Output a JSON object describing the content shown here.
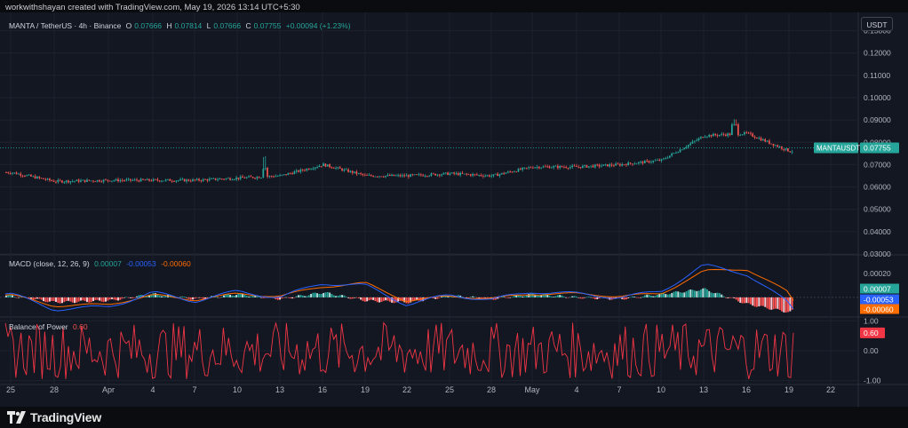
{
  "header": {
    "credit": "workwithshayan created with TradingView.com, May 19, 2026 13:14 UTC+5:30",
    "symbol": "MANTA / TetherUS · 4h · Binance",
    "o_label": "O",
    "o_value": "0.07666",
    "h_label": "H",
    "h_value": "0.07814",
    "l_label": "L",
    "l_value": "0.07666",
    "c_label": "C",
    "c_value": "0.07755",
    "change": "+0.00094 (+1.23%)"
  },
  "currency_button": "USDT",
  "price_pane": {
    "ticks": [
      "0.13000",
      "0.12000",
      "0.11000",
      "0.10000",
      "0.09000",
      "0.08000",
      "0.07000",
      "0.06000",
      "0.05000",
      "0.04000",
      "0.03000"
    ],
    "last_label": "MANTAUSDT",
    "last_value": "0.07755"
  },
  "macd_pane": {
    "name": "MACD (close, 12, 26, 9)",
    "hist": "0.00007",
    "macd": "-0.00053",
    "signal": "-0.00060",
    "ticks": [
      "0.00020"
    ],
    "tag_hist": "0.00007",
    "tag_macd": "-0.00053",
    "tag_signal": "-0.00060"
  },
  "bop_pane": {
    "name": "Balance of Power",
    "value": "0.60",
    "ticks": [
      "1.00",
      "0.00",
      "-1.00"
    ],
    "tag": "0.60"
  },
  "time_axis": [
    "25",
    "28",
    "Apr",
    "4",
    "7",
    "10",
    "13",
    "16",
    "19",
    "22",
    "25",
    "28",
    "May",
    "4",
    "7",
    "10",
    "13",
    "16",
    "19",
    "22"
  ],
  "footer": {
    "logo_text": "TradingView"
  },
  "colors": {
    "up": "#26a69a",
    "down": "#ef5350",
    "macd": "#2962ff",
    "signal": "#ff6d00",
    "bop": "#f23645",
    "background": "#131722",
    "grid": "#1e222d"
  },
  "chart_data": [
    {
      "type": "candlestick",
      "title": "MANTA / TetherUS · 4h · Binance",
      "x": [
        "Mar 25",
        "Mar 28",
        "Apr 1",
        "Apr 4",
        "Apr 7",
        "Apr 10",
        "Apr 13",
        "Apr 16",
        "Apr 19",
        "Apr 22",
        "Apr 25",
        "Apr 28",
        "May 1",
        "May 4",
        "May 7",
        "May 10",
        "May 13",
        "May 15",
        "May 17",
        "May 19"
      ],
      "close": [
        0.0665,
        0.0625,
        0.063,
        0.063,
        0.063,
        0.064,
        0.065,
        0.07,
        0.065,
        0.065,
        0.066,
        0.065,
        0.069,
        0.069,
        0.07,
        0.072,
        0.083,
        0.084,
        0.076,
        0.0775
      ],
      "ylim": [
        0.03,
        0.135
      ],
      "last": 0.07755,
      "grid": true
    },
    {
      "type": "line",
      "title": "MACD (close, 12, 26, 9)",
      "x": [
        "Mar 25",
        "Mar 28",
        "Apr 1",
        "Apr 4",
        "Apr 7",
        "Apr 10",
        "Apr 13",
        "Apr 16",
        "Apr 19",
        "Apr 22",
        "Apr 25",
        "Apr 28",
        "May 1",
        "May 4",
        "May 7",
        "May 10",
        "May 13",
        "May 15",
        "May 17",
        "May 19"
      ],
      "series": [
        {
          "name": "MACD",
          "values": [
            3e-05,
            -0.0001,
            -8e-05,
            4e-05,
            -3e-05,
            5e-05,
            0.0,
            0.00012,
            0.0001,
            -6e-05,
            2e-05,
            -2e-05,
            5e-05,
            3e-05,
            0.0,
            5e-05,
            0.00027,
            0.0002,
            -5e-05,
            -0.00053
          ]
        },
        {
          "name": "Signal",
          "values": [
            2e-05,
            -7e-05,
            -6e-05,
            2e-05,
            -2e-05,
            3e-05,
            1e-05,
            9e-05,
            0.00012,
            -3e-05,
            1e-05,
            -1e-05,
            3e-05,
            3e-05,
            1e-05,
            3e-05,
            0.00022,
            0.00024,
            4e-05,
            -0.0006
          ]
        },
        {
          "name": "Histogram",
          "values": [
            1e-05,
            -3e-05,
            -2e-05,
            2e-05,
            -1e-05,
            2e-05,
            -1e-05,
            3e-05,
            -2e-05,
            -3e-05,
            1e-05,
            -1e-05,
            2e-05,
            0.0,
            -1e-05,
            2e-05,
            5e-05,
            -4e-05,
            -9e-05,
            7e-05
          ]
        }
      ],
      "ylim": [
        -0.00015,
        0.00035
      ]
    },
    {
      "type": "line",
      "title": "Balance of Power",
      "series": [
        {
          "name": "Balance of Power",
          "last": 0.6
        }
      ],
      "ylim": [
        -1.1,
        1.1
      ]
    }
  ]
}
